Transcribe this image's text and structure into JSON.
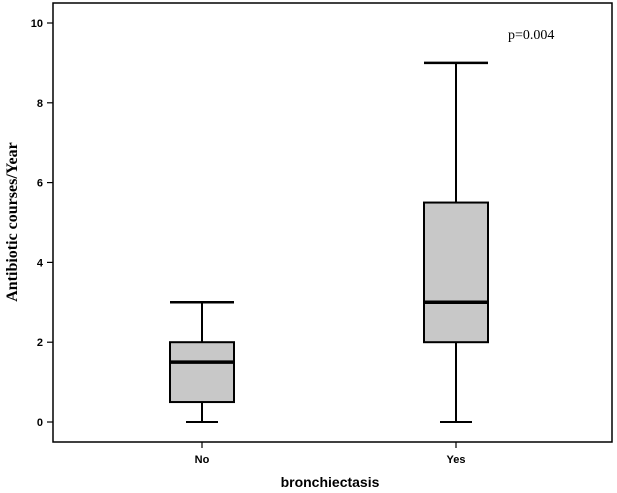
{
  "chart_data": {
    "type": "boxplot",
    "xlabel": "bronchiectasis",
    "ylabel": "Antibiotic courses/Year",
    "annotation": "p=0.004",
    "ylim": [
      0,
      10
    ],
    "yticks": [
      0,
      2,
      4,
      6,
      8,
      10
    ],
    "categories": [
      "No",
      "Yes"
    ],
    "boxes": [
      {
        "category": "No",
        "min": 0,
        "q1": 0.5,
        "median": 1.5,
        "q3": 2.0,
        "max": 3
      },
      {
        "category": "Yes",
        "min": 0,
        "q1": 2.0,
        "median": 3.0,
        "q3": 5.5,
        "max": 9
      }
    ],
    "box_fill": "#c8c8c8",
    "grid": false
  }
}
